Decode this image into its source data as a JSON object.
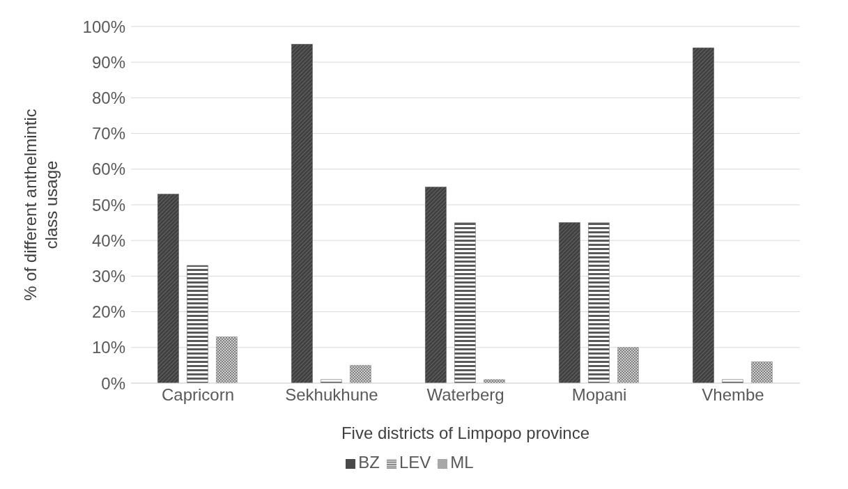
{
  "chart_data": {
    "type": "bar",
    "xlabel": "Five districts of Limpopo province",
    "ylabel": "% of different anthelmintic class usage",
    "categories": [
      "Capricorn",
      "Sekhukhune",
      "Waterberg",
      "Mopani",
      "Vhembe"
    ],
    "series": [
      {
        "name": "BZ",
        "color": "#404040",
        "values": [
          53,
          95,
          55,
          45,
          94
        ]
      },
      {
        "name": "LEV",
        "color": "#595959",
        "values": [
          33,
          1,
          45,
          45,
          1
        ]
      },
      {
        "name": "ML",
        "color": "#7f7f7f",
        "values": [
          13,
          5,
          1,
          10,
          6
        ]
      }
    ],
    "ylim": [
      0,
      100
    ],
    "yticks": [
      {
        "value": 0,
        "label": "0%"
      },
      {
        "value": 10,
        "label": "10%"
      },
      {
        "value": 20,
        "label": "20%"
      },
      {
        "value": 30,
        "label": "30%"
      },
      {
        "value": 40,
        "label": "40%"
      },
      {
        "value": 50,
        "label": "50%"
      },
      {
        "value": 60,
        "label": "60%"
      },
      {
        "value": 70,
        "label": "70%"
      },
      {
        "value": 80,
        "label": "80%"
      },
      {
        "value": 90,
        "label": "90%"
      },
      {
        "value": 100,
        "label": "100%"
      }
    ],
    "grid": "y",
    "legend": "bottom"
  }
}
